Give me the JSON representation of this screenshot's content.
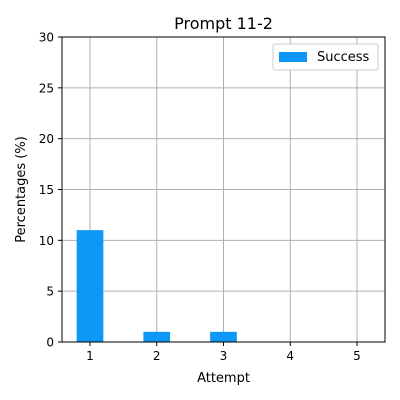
{
  "chart_data": {
    "type": "bar",
    "title": "Prompt 11-2",
    "xlabel": "Attempt",
    "ylabel": "Percentages (%)",
    "categories": [
      "1",
      "2",
      "3",
      "4",
      "5"
    ],
    "series": [
      {
        "name": "Success",
        "values": [
          11,
          1,
          1,
          0,
          0
        ],
        "color": "#0d98f5"
      }
    ],
    "ylim": [
      0,
      30
    ],
    "yticks": [
      "0",
      "5",
      "10",
      "15",
      "20",
      "25",
      "30"
    ],
    "grid": true,
    "legend_position": "top-right"
  }
}
